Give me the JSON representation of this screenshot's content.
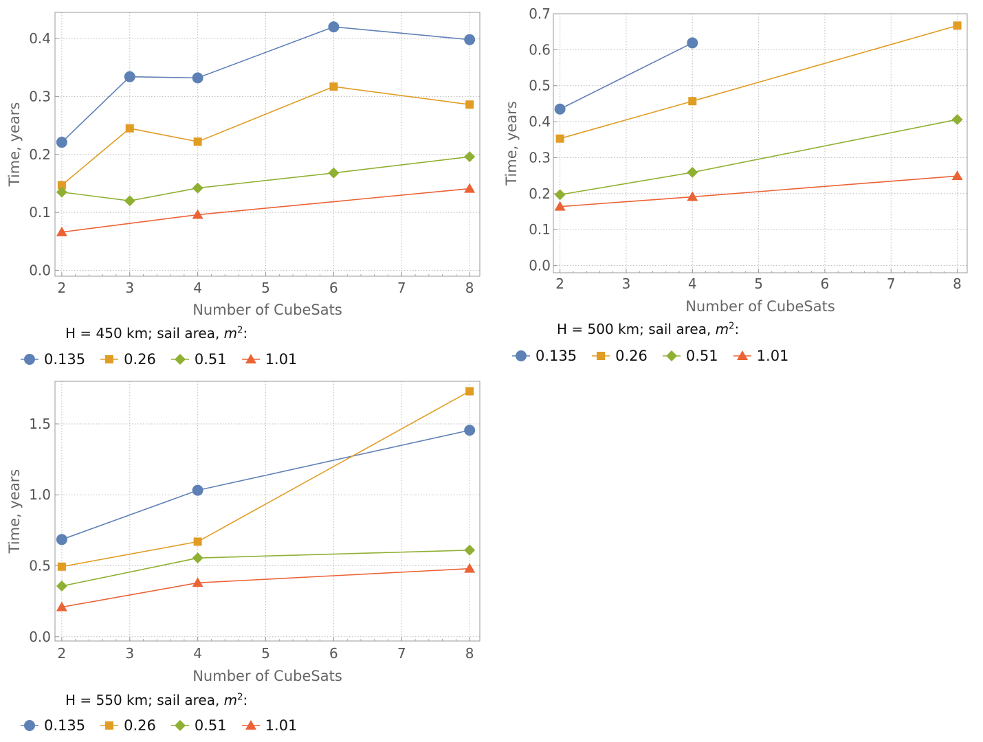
{
  "colors": {
    "s0135": "#5E81B5",
    "s026": "#E19C24",
    "s051": "#8FB032",
    "s101": "#EB6235",
    "frame": "#999999",
    "grid": "#bbbbbb"
  },
  "legend_markers": [
    "circle",
    "square",
    "diamond",
    "triangle"
  ],
  "chart_data": [
    {
      "type": "line",
      "title": "",
      "xlabel": "Number of CubeSats",
      "ylabel": "Time, years",
      "xlim": [
        1.9,
        8.15
      ],
      "ylim": [
        -0.01,
        0.445
      ],
      "xticks": [
        "2",
        "3",
        "4",
        "5",
        "6",
        "7",
        "8"
      ],
      "yticks": [
        "0.0",
        "0.1",
        "0.2",
        "0.3",
        "0.4"
      ],
      "legend_title_prefix": "H = 450 km; sail area, ",
      "legend_title_unit": "m",
      "legend_title_exp": "2",
      "legend_title_suffix": ":",
      "series": [
        {
          "name": "0.135",
          "x": [
            2,
            3,
            4,
            6,
            8
          ],
          "values": [
            0.221,
            0.334,
            0.332,
            0.42,
            0.398
          ]
        },
        {
          "name": "0.26",
          "x": [
            2,
            3,
            4,
            6,
            8
          ],
          "values": [
            0.147,
            0.245,
            0.222,
            0.317,
            0.286
          ]
        },
        {
          "name": "0.51",
          "x": [
            2,
            3,
            4,
            6,
            8
          ],
          "values": [
            0.135,
            0.12,
            0.142,
            0.168,
            0.196
          ]
        },
        {
          "name": "1.01",
          "x": [
            2,
            4,
            8
          ],
          "values": [
            0.066,
            0.096,
            0.141
          ]
        }
      ]
    },
    {
      "type": "line",
      "title": "",
      "xlabel": "Number of CubeSats",
      "ylabel": "Time, years",
      "xlim": [
        1.9,
        8.15
      ],
      "ylim": [
        -0.02,
        0.7
      ],
      "xticks": [
        "2",
        "3",
        "4",
        "5",
        "6",
        "7",
        "8"
      ],
      "yticks": [
        "0.0",
        "0.1",
        "0.2",
        "0.3",
        "0.4",
        "0.5",
        "0.6",
        "0.7"
      ],
      "legend_title_prefix": "H = 500 km; sail area, ",
      "legend_title_unit": "m",
      "legend_title_exp": "2",
      "legend_title_suffix": ":",
      "series": [
        {
          "name": "0.135",
          "x": [
            2,
            4
          ],
          "values": [
            0.435,
            0.619
          ]
        },
        {
          "name": "0.26",
          "x": [
            2,
            4,
            8
          ],
          "values": [
            0.353,
            0.457,
            0.667
          ]
        },
        {
          "name": "0.51",
          "x": [
            2,
            4,
            8
          ],
          "values": [
            0.197,
            0.259,
            0.406
          ]
        },
        {
          "name": "1.01",
          "x": [
            2,
            4,
            8
          ],
          "values": [
            0.164,
            0.191,
            0.249
          ]
        }
      ]
    },
    {
      "type": "line",
      "title": "",
      "xlabel": "Number of CubeSats",
      "ylabel": "Time, years",
      "xlim": [
        1.9,
        8.15
      ],
      "ylim": [
        -0.03,
        1.8
      ],
      "xticks": [
        "2",
        "3",
        "4",
        "5",
        "6",
        "7",
        "8"
      ],
      "yticks": [
        "0.0",
        "0.5",
        "1.0",
        "1.5"
      ],
      "legend_title_prefix": "H = 550 km; sail area, ",
      "legend_title_unit": "m",
      "legend_title_exp": "2",
      "legend_title_suffix": ":",
      "series": [
        {
          "name": "0.135",
          "x": [
            2,
            4,
            8
          ],
          "values": [
            0.685,
            1.032,
            1.455
          ]
        },
        {
          "name": "0.26",
          "x": [
            2,
            4,
            8
          ],
          "values": [
            0.494,
            0.67,
            1.73
          ]
        },
        {
          "name": "0.51",
          "x": [
            2,
            4,
            8
          ],
          "values": [
            0.357,
            0.555,
            0.61
          ]
        },
        {
          "name": "1.01",
          "x": [
            2,
            4,
            8
          ],
          "values": [
            0.209,
            0.38,
            0.48
          ]
        }
      ]
    }
  ]
}
